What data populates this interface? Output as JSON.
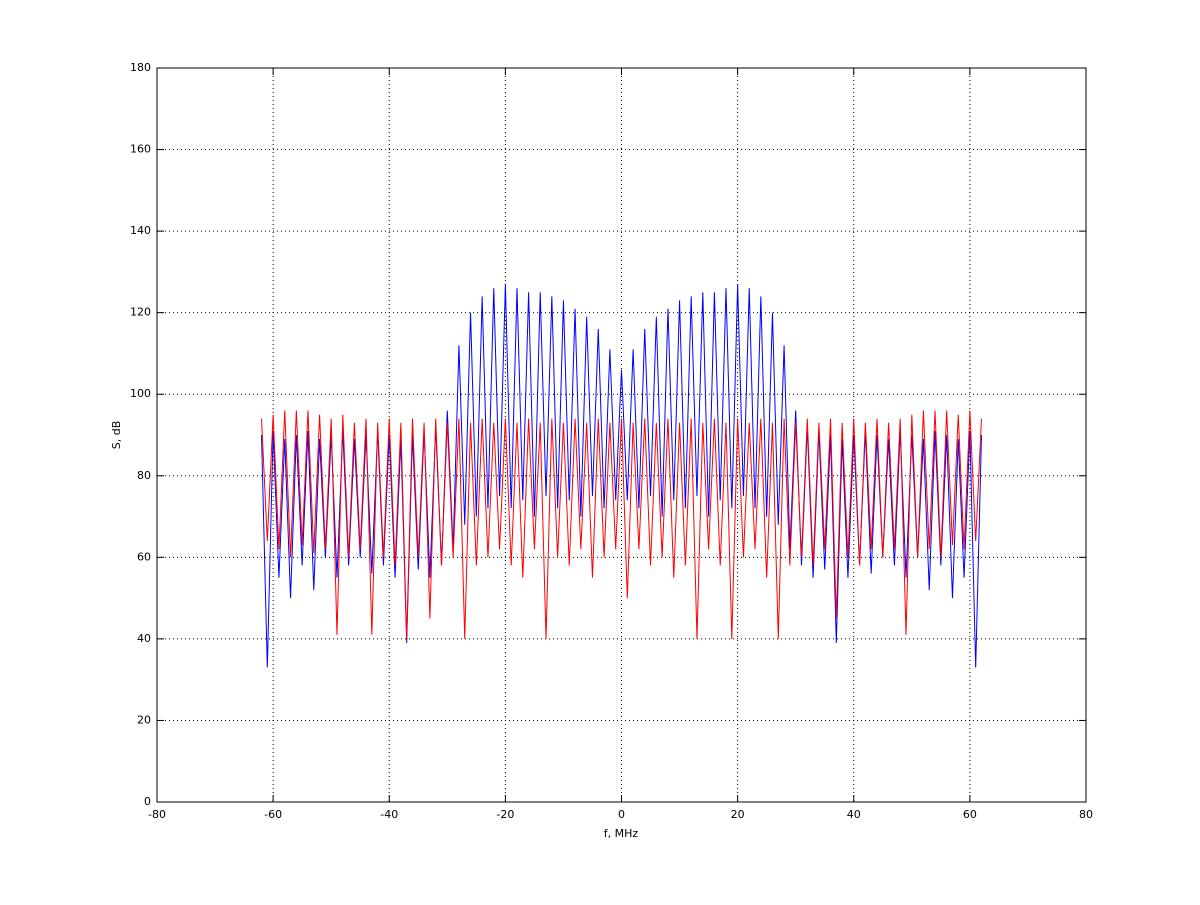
{
  "chart_data": {
    "type": "line",
    "xlabel": "f, MHz",
    "ylabel": "S, dB",
    "xlim": [
      -80,
      80
    ],
    "xticks": [
      -80,
      -60,
      -40,
      -20,
      0,
      20,
      40,
      60,
      80
    ],
    "ylim": [
      0,
      180
    ],
    "yticks": [
      0,
      20,
      40,
      60,
      80,
      100,
      120,
      140,
      160,
      180
    ],
    "grid": true,
    "x": [
      -62,
      -61,
      -60,
      -59,
      -58,
      -57,
      -56,
      -55,
      -54,
      -53,
      -52,
      -51,
      -50,
      -49,
      -48,
      -47,
      -46,
      -45,
      -44,
      -43,
      -42,
      -41,
      -40,
      -39,
      -38,
      -37,
      -36,
      -35,
      -34,
      -33,
      -32,
      -31,
      -30,
      -29,
      -28,
      -27,
      -26,
      -25,
      -24,
      -23,
      -22,
      -21,
      -20,
      -19,
      -18,
      -17,
      -16,
      -15,
      -14,
      -13,
      -12,
      -11,
      -10,
      -9,
      -8,
      -7,
      -6,
      -5,
      -4,
      -3,
      -2,
      -1,
      0,
      1,
      2,
      3,
      4,
      5,
      6,
      7,
      8,
      9,
      10,
      11,
      12,
      13,
      14,
      15,
      16,
      17,
      18,
      19,
      20,
      21,
      22,
      23,
      24,
      25,
      26,
      27,
      28,
      29,
      30,
      31,
      32,
      33,
      34,
      35,
      36,
      37,
      38,
      39,
      40,
      41,
      42,
      43,
      44,
      45,
      46,
      47,
      48,
      49,
      50,
      51,
      52,
      53,
      54,
      55,
      56,
      57,
      58,
      59,
      60,
      61,
      62
    ],
    "series": [
      {
        "color": "#0000ff",
        "values": [
          90,
          33,
          91,
          55,
          89,
          50,
          90,
          58,
          91,
          52,
          89,
          60,
          90,
          55,
          91,
          58,
          89,
          60,
          90,
          56,
          91,
          58,
          90,
          55,
          89,
          39,
          90,
          57,
          91,
          55,
          92,
          58,
          96,
          62,
          112,
          68,
          120,
          70,
          124,
          72,
          126,
          75,
          127,
          72,
          126,
          74,
          125,
          70,
          125,
          75,
          124,
          72,
          123,
          74,
          121,
          70,
          119,
          75,
          116,
          72,
          111,
          74,
          106,
          74,
          111,
          72,
          116,
          75,
          119,
          70,
          121,
          74,
          123,
          72,
          124,
          75,
          125,
          70,
          125,
          74,
          126,
          72,
          127,
          75,
          126,
          72,
          124,
          70,
          120,
          68,
          112,
          62,
          96,
          58,
          92,
          55,
          91,
          57,
          90,
          39,
          89,
          55,
          90,
          58,
          91,
          56,
          90,
          60,
          89,
          58,
          91,
          55,
          90,
          60,
          89,
          52,
          91,
          58,
          90,
          50,
          89,
          55,
          91,
          33,
          90
        ]
      },
      {
        "color": "#ff0000",
        "values": [
          94,
          64,
          95,
          62,
          96,
          60,
          96,
          63,
          96,
          61,
          95,
          62,
          94,
          41,
          95,
          60,
          93,
          62,
          94,
          41,
          93,
          60,
          94,
          58,
          93,
          40,
          94,
          60,
          93,
          45,
          94,
          58,
          93,
          60,
          94,
          40,
          93,
          58,
          94,
          60,
          93,
          62,
          94,
          58,
          93,
          55,
          94,
          62,
          93,
          40,
          94,
          60,
          93,
          58,
          94,
          62,
          93,
          55,
          94,
          60,
          93,
          62,
          94,
          50,
          93,
          62,
          94,
          58,
          93,
          60,
          94,
          55,
          93,
          58,
          94,
          40,
          93,
          62,
          94,
          58,
          93,
          40,
          94,
          60,
          93,
          62,
          94,
          55,
          93,
          40,
          94,
          58,
          93,
          60,
          94,
          58,
          93,
          62,
          94,
          45,
          93,
          60,
          94,
          58,
          93,
          62,
          94,
          60,
          93,
          62,
          94,
          41,
          95,
          60,
          96,
          62,
          96,
          60,
          96,
          63,
          95,
          62,
          96,
          64,
          94
        ]
      }
    ]
  }
}
